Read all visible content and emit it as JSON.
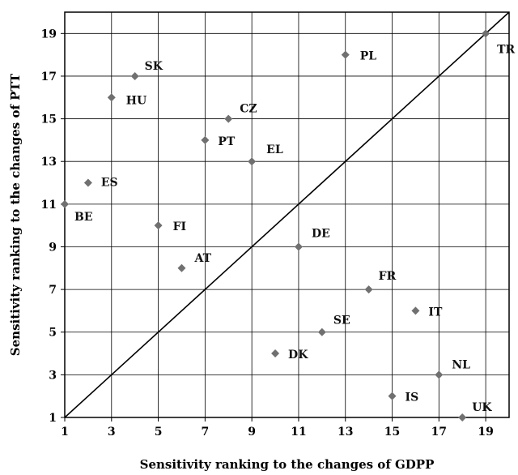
{
  "chart_data": {
    "type": "scatter",
    "title": "",
    "xlabel": "Sensitivity ranking to the changes of GDPP",
    "ylabel": "Sensitivity ranking to the changes of PTT",
    "xlim": [
      1,
      20
    ],
    "ylim": [
      1,
      20
    ],
    "xticks": [
      1,
      3,
      5,
      7,
      9,
      11,
      13,
      15,
      17,
      19
    ],
    "yticks": [
      1,
      3,
      5,
      7,
      9,
      11,
      13,
      15,
      17,
      19
    ],
    "grid": true,
    "reference_line": "y = x",
    "marker_color": "#707070",
    "points": [
      {
        "label": "BE",
        "x": 1,
        "y": 11
      },
      {
        "label": "ES",
        "x": 2,
        "y": 12
      },
      {
        "label": "HU",
        "x": 3,
        "y": 16
      },
      {
        "label": "SK",
        "x": 4,
        "y": 17
      },
      {
        "label": "FI",
        "x": 5,
        "y": 10
      },
      {
        "label": "AT",
        "x": 6,
        "y": 8
      },
      {
        "label": "PT",
        "x": 7,
        "y": 14
      },
      {
        "label": "CZ",
        "x": 8,
        "y": 15
      },
      {
        "label": "EL",
        "x": 9,
        "y": 13
      },
      {
        "label": "DK",
        "x": 10,
        "y": 4
      },
      {
        "label": "DE",
        "x": 11,
        "y": 9
      },
      {
        "label": "SE",
        "x": 12,
        "y": 5
      },
      {
        "label": "PL",
        "x": 13,
        "y": 18
      },
      {
        "label": "FR",
        "x": 14,
        "y": 7
      },
      {
        "label": "IS",
        "x": 15,
        "y": 2
      },
      {
        "label": "IT",
        "x": 16,
        "y": 6
      },
      {
        "label": "NL",
        "x": 17,
        "y": 3
      },
      {
        "label": "UK",
        "x": 18,
        "y": 1
      },
      {
        "label": "TR",
        "x": 19,
        "y": 19
      }
    ]
  }
}
